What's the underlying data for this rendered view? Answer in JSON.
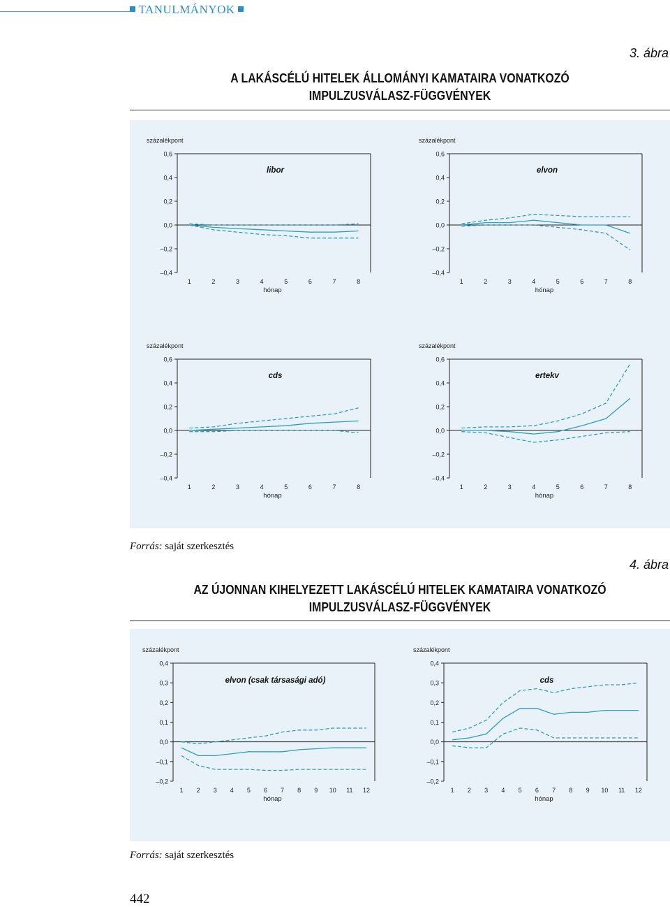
{
  "header": {
    "section": "TANULMÁNYOK"
  },
  "figure3": {
    "number": "3. ábra",
    "title_lines": [
      "A LAKÁSCÉLÚ HITELEK ÁLLOMÁNYI KAMATAIRA VONATKOZÓ",
      "IMPULZUSVÁLASZ-FÜGGVÉNYEK"
    ],
    "source_label": "Forrás:",
    "source_text": " saját szerkesztés"
  },
  "figure4": {
    "number": "4. ábra",
    "title_lines": [
      "AZ ÚJONNAN KIHELYEZETT LAKÁSCÉLÚ HITELEK KAMATAIRA VONATKOZÓ",
      "IMPULZUSVÁLASZ-FÜGGVÉNYEK"
    ],
    "source_label": "Forrás:",
    "source_text": " saját szerkesztés"
  },
  "page_number": "442",
  "colors": {
    "line": "#2e9fbf",
    "panel_bg": "#e8f2f8",
    "accent": "#2b8fbf"
  },
  "chart_data": [
    {
      "id": "libor",
      "type": "line",
      "title": "libor",
      "ylabel": "százalékpont",
      "xlabel": "hónap",
      "x": [
        1,
        2,
        3,
        4,
        5,
        6,
        7,
        8
      ],
      "ylim": [
        -0.4,
        0.6
      ],
      "yticks": [
        "0,6",
        "0,4",
        "0,2",
        "0,0",
        "–0,2",
        "–0,4"
      ],
      "series": [
        {
          "style": "solid",
          "values": [
            0.0,
            -0.02,
            -0.03,
            -0.04,
            -0.05,
            -0.06,
            -0.06,
            -0.05
          ]
        },
        {
          "style": "dashed",
          "values": [
            0.0,
            -0.04,
            -0.06,
            -0.08,
            -0.09,
            -0.11,
            -0.11,
            -0.11
          ]
        },
        {
          "style": "dashed",
          "values": [
            0.01,
            0.0,
            0.0,
            0.0,
            0.0,
            0.0,
            0.0,
            0.01
          ]
        }
      ]
    },
    {
      "id": "elvon",
      "type": "line",
      "title": "elvon",
      "ylabel": "százalékpont",
      "xlabel": "hónap",
      "x": [
        1,
        2,
        3,
        4,
        5,
        6,
        7,
        8
      ],
      "ylim": [
        -0.4,
        0.6
      ],
      "yticks": [
        "0,6",
        "0,4",
        "0,2",
        "0,0",
        "–0,2",
        "–0,4"
      ],
      "series": [
        {
          "style": "solid",
          "values": [
            0.0,
            0.02,
            0.02,
            0.04,
            0.02,
            0.0,
            0.0,
            -0.07
          ]
        },
        {
          "style": "dashed",
          "values": [
            0.01,
            0.04,
            0.06,
            0.09,
            0.08,
            0.07,
            0.07,
            0.07
          ]
        },
        {
          "style": "dashed",
          "values": [
            -0.01,
            0.0,
            0.0,
            0.0,
            -0.02,
            -0.04,
            -0.07,
            -0.21
          ]
        }
      ]
    },
    {
      "id": "cds",
      "type": "line",
      "title": "cds",
      "ylabel": "százalékpont",
      "xlabel": "hónap",
      "x": [
        1,
        2,
        3,
        4,
        5,
        6,
        7,
        8
      ],
      "ylim": [
        -0.4,
        0.6
      ],
      "yticks": [
        "0,6",
        "0,4",
        "0,2",
        "0,0",
        "–0,2",
        "–0,4"
      ],
      "series": [
        {
          "style": "solid",
          "values": [
            0.0,
            0.01,
            0.02,
            0.03,
            0.04,
            0.06,
            0.07,
            0.08
          ]
        },
        {
          "style": "dashed",
          "values": [
            0.02,
            0.03,
            0.06,
            0.08,
            0.1,
            0.12,
            0.14,
            0.19
          ]
        },
        {
          "style": "dashed",
          "values": [
            -0.01,
            -0.01,
            0.0,
            0.0,
            0.0,
            0.0,
            0.0,
            -0.02
          ]
        }
      ]
    },
    {
      "id": "ertekv",
      "type": "line",
      "title": "ertekv",
      "ylabel": "százalékpont",
      "xlabel": "hónap",
      "x": [
        1,
        2,
        3,
        4,
        5,
        6,
        7,
        8
      ],
      "ylim": [
        -0.4,
        0.6
      ],
      "yticks": [
        "0,6",
        "0,4",
        "0,2",
        "0,0",
        "–0,2",
        "–0,4"
      ],
      "series": [
        {
          "style": "solid",
          "values": [
            0.0,
            0.0,
            -0.01,
            -0.03,
            -0.01,
            0.04,
            0.1,
            0.27
          ]
        },
        {
          "style": "dashed",
          "values": [
            0.02,
            0.03,
            0.03,
            0.04,
            0.08,
            0.14,
            0.23,
            0.56
          ]
        },
        {
          "style": "dashed",
          "values": [
            -0.01,
            -0.02,
            -0.06,
            -0.1,
            -0.08,
            -0.05,
            -0.02,
            -0.01
          ]
        }
      ]
    },
    {
      "id": "elvon_csak",
      "type": "line",
      "title": "elvon (csak társasági adó)",
      "ylabel": "százalékpont",
      "xlabel": "hónap",
      "x": [
        1,
        2,
        3,
        4,
        5,
        6,
        7,
        8,
        9,
        10,
        11,
        12
      ],
      "ylim": [
        -0.2,
        0.4
      ],
      "yticks": [
        "0,4",
        "0,3",
        "0,2",
        "0,1",
        "0,0",
        "–0,1",
        "–0,2"
      ],
      "series": [
        {
          "style": "solid",
          "values": [
            -0.03,
            -0.07,
            -0.07,
            -0.06,
            -0.05,
            -0.05,
            -0.05,
            -0.04,
            -0.035,
            -0.03,
            -0.03,
            -0.03
          ]
        },
        {
          "style": "dashed",
          "values": [
            -0.07,
            -0.12,
            -0.14,
            -0.14,
            -0.14,
            -0.145,
            -0.145,
            -0.14,
            -0.14,
            -0.14,
            -0.14,
            -0.14
          ]
        },
        {
          "style": "dashed",
          "values": [
            0.0,
            -0.01,
            0.0,
            0.01,
            0.02,
            0.03,
            0.05,
            0.06,
            0.06,
            0.07,
            0.07,
            0.07
          ]
        }
      ]
    },
    {
      "id": "cds_new",
      "type": "line",
      "title": "cds",
      "ylabel": "százalékpont",
      "xlabel": "hónap",
      "x": [
        1,
        2,
        3,
        4,
        5,
        6,
        7,
        8,
        9,
        10,
        11,
        12
      ],
      "ylim": [
        -0.2,
        0.4
      ],
      "yticks": [
        "0,4",
        "0,3",
        "0,2",
        "0,1",
        "0,0",
        "–0,1",
        "–0,2"
      ],
      "series": [
        {
          "style": "solid",
          "values": [
            0.01,
            0.02,
            0.04,
            0.12,
            0.17,
            0.17,
            0.14,
            0.15,
            0.15,
            0.16,
            0.16,
            0.16
          ]
        },
        {
          "style": "dashed",
          "values": [
            0.05,
            0.07,
            0.11,
            0.2,
            0.26,
            0.27,
            0.25,
            0.27,
            0.28,
            0.29,
            0.29,
            0.3
          ]
        },
        {
          "style": "dashed",
          "values": [
            -0.02,
            -0.03,
            -0.03,
            0.04,
            0.07,
            0.06,
            0.02,
            0.02,
            0.02,
            0.02,
            0.02,
            0.02
          ]
        }
      ]
    }
  ]
}
